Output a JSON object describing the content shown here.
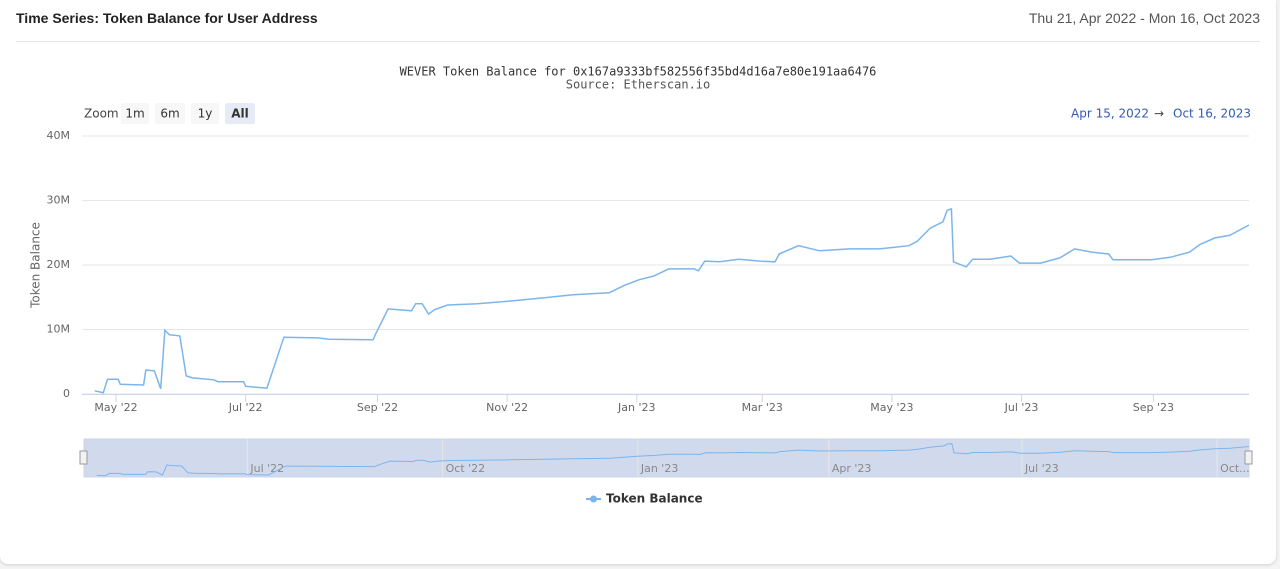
{
  "header": {
    "title": "Time Series: Token Balance for User Address",
    "date_range": "Thu 21, Apr 2022 - Mon 16, Oct 2023"
  },
  "zoom": {
    "label": "Zoom",
    "buttons": [
      "1m",
      "6m",
      "1y",
      "All"
    ],
    "selected": 3
  },
  "range": {
    "from": "Apr 15, 2022",
    "separator": "→",
    "to": "Oct 16, 2023"
  },
  "chart_data": {
    "type": "line",
    "title": "WEVER Token Balance for 0x167a9333bf582556f35bd4d16a7e80e191aa6476",
    "subtitle": "Source: Etherscan.io",
    "y_label": "Token Balance",
    "grid": true,
    "xlim": [
      "2022-04-15",
      "2023-10-16"
    ],
    "xticks": [
      {
        "value": "2022-05-01",
        "label": "May '22"
      },
      {
        "value": "2022-07-01",
        "label": "Jul '22"
      },
      {
        "value": "2022-09-01",
        "label": "Sep '22"
      },
      {
        "value": "2022-11-01",
        "label": "Nov '22"
      },
      {
        "value": "2023-01-01",
        "label": "Jan '23"
      },
      {
        "value": "2023-03-01",
        "label": "Mar '23"
      },
      {
        "value": "2023-05-01",
        "label": "May '23"
      },
      {
        "value": "2023-07-01",
        "label": "Jul '23"
      },
      {
        "value": "2023-09-01",
        "label": "Sep '23"
      }
    ],
    "ylim": [
      0,
      40000000
    ],
    "yticks": [
      0,
      {
        "value": 10000000,
        "label": "10M"
      },
      {
        "value": 20000000,
        "label": "20M"
      },
      {
        "value": 30000000,
        "label": "30M"
      },
      {
        "value": 40000000,
        "label": "40M"
      }
    ],
    "navigator_ticks": [
      {
        "value": "2022-07-01",
        "label": "Jul '22"
      },
      {
        "value": "2022-10-01",
        "label": "Oct '22"
      },
      {
        "value": "2023-01-01",
        "label": "Jan '23"
      },
      {
        "value": "2023-04-01",
        "label": "Apr '23"
      },
      {
        "value": "2023-07-01",
        "label": "Jul '23"
      },
      {
        "value": "2023-10-01",
        "label": "Oct..."
      }
    ],
    "series": [
      {
        "name": "Token Balance",
        "color": "#7cb5ec",
        "x": [
          "2022-04-21",
          "2022-04-25",
          "2022-04-27",
          "2022-05-02",
          "2022-05-03",
          "2022-05-14",
          "2022-05-15",
          "2022-05-19",
          "2022-05-22",
          "2022-05-24",
          "2022-05-26",
          "2022-05-31",
          "2022-06-03",
          "2022-06-06",
          "2022-06-16",
          "2022-06-18",
          "2022-06-30",
          "2022-07-01",
          "2022-07-11",
          "2022-07-19",
          "2022-08-04",
          "2022-08-09",
          "2022-08-30",
          "2022-08-31",
          "2022-09-06",
          "2022-09-17",
          "2022-09-19",
          "2022-09-22",
          "2022-09-25",
          "2022-09-28",
          "2022-10-04",
          "2022-10-18",
          "2022-11-02",
          "2022-11-18",
          "2022-12-02",
          "2022-12-19",
          "2022-12-26",
          "2023-01-02",
          "2023-01-09",
          "2023-01-16",
          "2023-01-28",
          "2023-01-30",
          "2023-02-02",
          "2023-02-09",
          "2023-02-18",
          "2023-02-28",
          "2023-03-07",
          "2023-03-09",
          "2023-03-18",
          "2023-03-28",
          "2023-04-11",
          "2023-04-25",
          "2023-05-09",
          "2023-05-13",
          "2023-05-19",
          "2023-05-25",
          "2023-05-27",
          "2023-05-29",
          "2023-05-30",
          "2023-06-05",
          "2023-06-08",
          "2023-06-16",
          "2023-06-26",
          "2023-06-30",
          "2023-07-10",
          "2023-07-19",
          "2023-07-26",
          "2023-08-03",
          "2023-08-11",
          "2023-08-13",
          "2023-08-31",
          "2023-09-09",
          "2023-09-18",
          "2023-09-23",
          "2023-09-30",
          "2023-10-07",
          "2023-10-16"
        ],
        "values": [
          500000,
          200000,
          2300000,
          2300000,
          1500000,
          1400000,
          3700000,
          3600000,
          800000,
          9900000,
          9200000,
          9000000,
          2800000,
          2500000,
          2200000,
          1900000,
          1900000,
          1200000,
          900000,
          8800000,
          8700000,
          8500000,
          8400000,
          9200000,
          13200000,
          12900000,
          14000000,
          14000000,
          12400000,
          13100000,
          13800000,
          14000000,
          14400000,
          14900000,
          15400000,
          15700000,
          16800000,
          17700000,
          18300000,
          19400000,
          19400000,
          19100000,
          20600000,
          20500000,
          20900000,
          20600000,
          20500000,
          21700000,
          23000000,
          22200000,
          22500000,
          22500000,
          23000000,
          23700000,
          25700000,
          26700000,
          28500000,
          28700000,
          20500000,
          19700000,
          20900000,
          20900000,
          21400000,
          20300000,
          20300000,
          21100000,
          22500000,
          22000000,
          21700000,
          20800000,
          20800000,
          21200000,
          22000000,
          23200000,
          24200000,
          24600000,
          26200000
        ]
      }
    ]
  }
}
